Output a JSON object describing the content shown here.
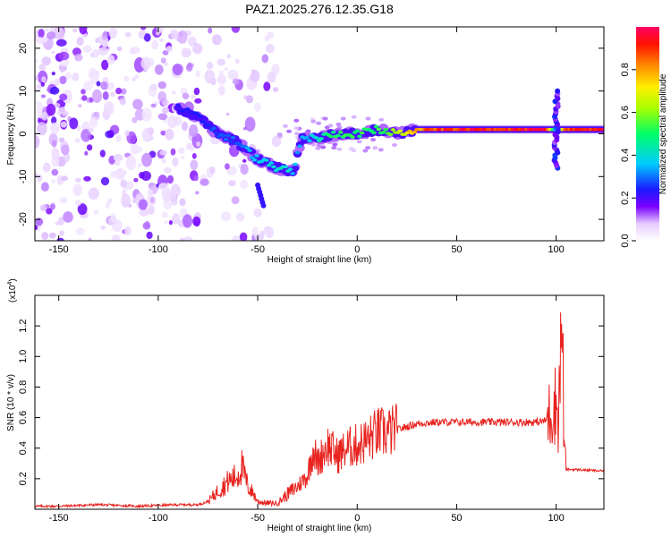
{
  "chart_data": [
    {
      "type": "heatmap",
      "title": "PAZ1.2025.276.12.35.G18",
      "xlabel": "Height of straight line (km)",
      "ylabel": "Frequency (Hz)",
      "xlim": [
        -162,
        124
      ],
      "ylim": [
        -25,
        25
      ],
      "x_ticks": [
        "-150",
        "-100",
        "-50",
        "0",
        "50",
        "100"
      ],
      "x_tick_values": [
        -150,
        -100,
        -50,
        0,
        50,
        100
      ],
      "y_ticks": [
        "20",
        "10",
        "0",
        "-10",
        "-20"
      ],
      "y_tick_values": [
        20,
        10,
        0,
        -10,
        -20
      ],
      "colorbar": {
        "label": "Normalized spectral amplitude",
        "range": [
          0,
          1
        ],
        "ticks": [
          "0.0",
          "0.2",
          "0.4",
          "0.6",
          "0.8"
        ],
        "tick_values": [
          0.0,
          0.2,
          0.4,
          0.6,
          0.8
        ]
      },
      "ridge": {
        "x": [
          -90,
          -80,
          -70,
          -60,
          -50,
          -40,
          -32,
          -28,
          -20,
          -10,
          0,
          10,
          20,
          30,
          40,
          60,
          80,
          95,
          100,
          105,
          124
        ],
        "frequency": [
          6,
          4,
          0,
          -2,
          -6,
          -8,
          -9,
          -1,
          -1,
          0,
          0,
          1,
          0,
          1,
          1,
          1,
          1,
          1,
          1,
          1,
          1
        ],
        "amplitude": [
          0.25,
          0.25,
          0.3,
          0.3,
          0.4,
          0.45,
          0.4,
          0.35,
          0.45,
          0.55,
          0.55,
          0.55,
          0.65,
          0.85,
          0.95,
          1.0,
          1.0,
          1.0,
          0.3,
          1.0,
          1.0
        ]
      }
    },
    {
      "type": "line",
      "xlabel": "Height of straight line (km)",
      "ylabel": "SNR (10 * v/v)",
      "scale_label": "(x10",
      "scale_exp": "4",
      "scale_close": ")",
      "xlim": [
        -162,
        124
      ],
      "ylim": [
        0,
        1.4
      ],
      "x_ticks": [
        "-150",
        "-100",
        "-50",
        "0",
        "50",
        "100"
      ],
      "x_tick_values": [
        -150,
        -100,
        -50,
        0,
        50,
        100
      ],
      "y_ticks": [
        "0.2",
        "0.4",
        "0.6",
        "0.8",
        "1.0",
        "1.2"
      ],
      "y_tick_values": [
        0.2,
        0.4,
        0.6,
        0.8,
        1.0,
        1.2
      ],
      "color": "#e8231f",
      "series": [
        {
          "name": "SNR",
          "x": [
            -162,
            -150,
            -130,
            -110,
            -90,
            -80,
            -75,
            -70,
            -65,
            -60,
            -58,
            -55,
            -52,
            -50,
            -45,
            -40,
            -35,
            -30,
            -25,
            -22,
            -20,
            -18,
            -15,
            -12,
            -10,
            -5,
            0,
            5,
            10,
            15,
            20,
            25,
            30,
            40,
            50,
            60,
            70,
            80,
            90,
            95,
            98,
            100,
            101,
            102,
            103,
            104,
            105,
            110,
            124
          ],
          "y": [
            0.02,
            0.02,
            0.03,
            0.02,
            0.03,
            0.03,
            0.05,
            0.12,
            0.18,
            0.22,
            0.28,
            0.15,
            0.1,
            0.05,
            0.04,
            0.04,
            0.1,
            0.15,
            0.22,
            0.4,
            0.3,
            0.35,
            0.42,
            0.38,
            0.35,
            0.4,
            0.42,
            0.45,
            0.5,
            0.5,
            0.52,
            0.54,
            0.56,
            0.57,
            0.57,
            0.57,
            0.57,
            0.57,
            0.57,
            0.58,
            0.65,
            0.7,
            0.6,
            0.9,
            1.3,
            0.4,
            0.26,
            0.26,
            0.25
          ]
        }
      ]
    }
  ]
}
